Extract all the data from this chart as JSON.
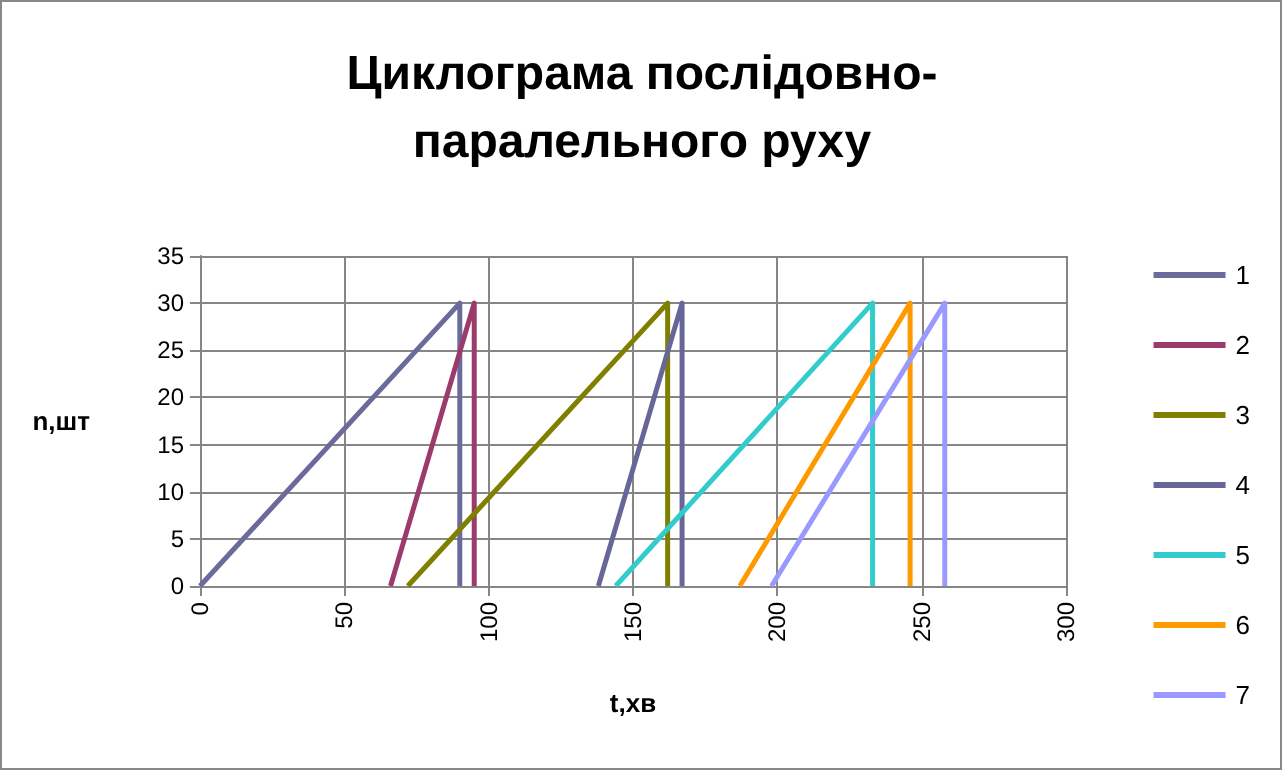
{
  "chart_data": {
    "type": "line",
    "title": "Циклограма послідовно-паралельного руху",
    "xlabel": "t,хв",
    "ylabel": "n,шт",
    "series": [
      {
        "name": "1",
        "color": "#6b6b9b",
        "x": [
          0,
          90,
          90
        ],
        "values": [
          0,
          30,
          0
        ]
      },
      {
        "name": "2",
        "color": "#9b3b6b",
        "x": [
          66,
          95,
          95
        ],
        "values": [
          0,
          30,
          0
        ]
      },
      {
        "name": "3",
        "color": "#808000",
        "x": [
          72,
          162,
          162
        ],
        "values": [
          0,
          30,
          0
        ]
      },
      {
        "name": "4",
        "color": "#666699",
        "x": [
          138,
          167,
          167
        ],
        "values": [
          0,
          30,
          0
        ]
      },
      {
        "name": "5",
        "color": "#33cccc",
        "x": [
          144,
          233,
          233
        ],
        "values": [
          0,
          30,
          0
        ]
      },
      {
        "name": "6",
        "color": "#ff9900",
        "x": [
          187,
          246,
          246
        ],
        "values": [
          0,
          30,
          0
        ]
      },
      {
        "name": "7",
        "color": "#9999ff",
        "x": [
          198,
          258,
          258
        ],
        "values": [
          0,
          30,
          0
        ]
      }
    ],
    "xlim": [
      0,
      300
    ],
    "xticks": [
      0,
      50,
      100,
      150,
      200,
      250,
      300
    ],
    "ylim": [
      0,
      35
    ],
    "yticks": [
      0,
      5,
      10,
      15,
      20,
      25,
      30,
      35
    ],
    "grid": true,
    "legend": "right",
    "marker": "none",
    "line_style": "solid"
  }
}
